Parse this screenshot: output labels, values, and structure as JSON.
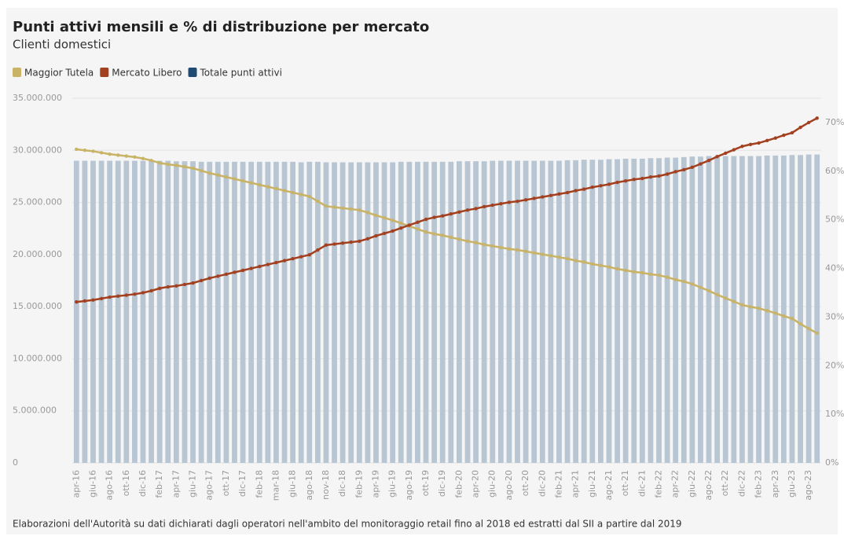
{
  "chart_data": {
    "type": "bar_line",
    "title": "Punti attivi mensili e % di distribuzione per mercato",
    "subtitle": "Clienti domestici",
    "source": "Elaborazioni dell'Autorità su dati dichiarati dagli operatori nell'ambito del monitoraggio retail fino al 2018 ed estratti dal SII a partire dal 2019",
    "categories": [
      "apr-16",
      null,
      "giu-16",
      null,
      "ago-16",
      null,
      "ott-16",
      null,
      "dic-16",
      null,
      "feb-17",
      null,
      "apr-17",
      null,
      "giu-17",
      null,
      "ago-17",
      null,
      "ott-17",
      null,
      "dic-17",
      null,
      "feb-18",
      null,
      "mar-18",
      null,
      "giu-18",
      null,
      "ago-18",
      null,
      "nov-18",
      null,
      "dic-18",
      null,
      "feb-19",
      null,
      "apr-19",
      null,
      "giu-19",
      null,
      "ago-19",
      null,
      "ott-19",
      null,
      "dic-19",
      null,
      "feb-20",
      null,
      "apr-20",
      null,
      "giu-20",
      null,
      "ago-20",
      null,
      "ott-20",
      null,
      "dic-20",
      null,
      "feb-21",
      null,
      "apr-21",
      null,
      "giu-21",
      null,
      "ago-21",
      null,
      "ott-21",
      null,
      "dic-21",
      null,
      "feb-22",
      null,
      "apr-22",
      null,
      "giu-22",
      null,
      "ago-22",
      null,
      "ott-22",
      null,
      "dic-22",
      null,
      "feb-23",
      null,
      "apr-23",
      null,
      "giu-23",
      null,
      "ago-23",
      null
    ],
    "series": [
      {
        "name": "Maggior Tutela",
        "color": "#c8b366",
        "axis": "y2",
        "kind": "line",
        "values": [
          64.5,
          64.3,
          64.1,
          63.8,
          63.5,
          63.3,
          63.1,
          62.9,
          62.6,
          62.2,
          61.7,
          61.4,
          61.2,
          60.9,
          60.6,
          60.1,
          59.6,
          59.2,
          58.8,
          58.4,
          58.0,
          57.6,
          57.2,
          56.8,
          56.4,
          56.0,
          55.6,
          55.2,
          54.8,
          53.8,
          52.8,
          52.6,
          52.4,
          52.2,
          52.0,
          51.5,
          50.9,
          50.4,
          49.9,
          49.3,
          48.7,
          48.1,
          47.5,
          47.1,
          46.8,
          46.4,
          46.0,
          45.6,
          45.3,
          44.9,
          44.6,
          44.3,
          44.0,
          43.8,
          43.5,
          43.2,
          42.9,
          42.6,
          42.3,
          42.0,
          41.6,
          41.3,
          40.9,
          40.6,
          40.3,
          39.9,
          39.6,
          39.3,
          39.1,
          38.8,
          38.6,
          38.2,
          37.7,
          37.3,
          36.8,
          36.1,
          35.4,
          34.6,
          33.9,
          33.2,
          32.5,
          32.1,
          31.8,
          31.3,
          30.8,
          30.2,
          29.7,
          28.6,
          27.6,
          26.7
        ]
      },
      {
        "name": "Mercato Libero",
        "color": "#a3401f",
        "axis": "y2",
        "kind": "line",
        "values": [
          33.1,
          33.3,
          33.5,
          33.8,
          34.1,
          34.3,
          34.5,
          34.7,
          35.0,
          35.4,
          35.9,
          36.2,
          36.4,
          36.7,
          37.0,
          37.5,
          38.0,
          38.4,
          38.8,
          39.2,
          39.6,
          40.0,
          40.4,
          40.8,
          41.2,
          41.6,
          42.0,
          42.4,
          42.8,
          43.8,
          44.8,
          45.0,
          45.2,
          45.4,
          45.6,
          46.1,
          46.7,
          47.2,
          47.7,
          48.3,
          48.9,
          49.5,
          50.1,
          50.5,
          50.8,
          51.2,
          51.6,
          52.0,
          52.3,
          52.7,
          53.0,
          53.3,
          53.6,
          53.8,
          54.1,
          54.4,
          54.7,
          55.0,
          55.3,
          55.6,
          56.0,
          56.3,
          56.7,
          57.0,
          57.3,
          57.7,
          58.0,
          58.3,
          58.5,
          58.8,
          59.0,
          59.4,
          59.9,
          60.3,
          60.8,
          61.5,
          62.2,
          63.0,
          63.7,
          64.4,
          65.1,
          65.5,
          65.8,
          66.3,
          66.8,
          67.4,
          67.9,
          69.0,
          70.0,
          70.9
        ]
      },
      {
        "name": "Totale punti attivi",
        "color": "#b8c5d3",
        "legend_color": "#1f4a72",
        "kind": "bar",
        "values": [
          29000000,
          29000000,
          29000000,
          29000000,
          29000000,
          29000000,
          29000000,
          29000000,
          29000000,
          29000000,
          29000000,
          29000000,
          28950000,
          28950000,
          28950000,
          28900000,
          28900000,
          28900000,
          28900000,
          28900000,
          28900000,
          28900000,
          28900000,
          28900000,
          28900000,
          28900000,
          28900000,
          28850000,
          28900000,
          28900000,
          28850000,
          28850000,
          28850000,
          28850000,
          28850000,
          28850000,
          28850000,
          28850000,
          28850000,
          28900000,
          28900000,
          28900000,
          28900000,
          28900000,
          28900000,
          28900000,
          28950000,
          28950000,
          28950000,
          28950000,
          29000000,
          29000000,
          29000000,
          29000000,
          29000000,
          29000000,
          29000000,
          29000000,
          29000000,
          29050000,
          29050000,
          29100000,
          29100000,
          29100000,
          29150000,
          29150000,
          29200000,
          29200000,
          29200000,
          29250000,
          29250000,
          29300000,
          29300000,
          29350000,
          29400000,
          29400000,
          29450000,
          29450000,
          29450000,
          29450000,
          29450000,
          29450000,
          29450000,
          29500000,
          29500000,
          29500000,
          29550000,
          29550000,
          29600000,
          29600000
        ]
      }
    ],
    "ylim": [
      0,
      35000000
    ],
    "yticks": [
      0,
      {
        "value": 5000000,
        "label": "5.000.000"
      },
      {
        "value": 10000000,
        "label": "10.000.000"
      },
      {
        "value": 15000000,
        "label": "15.000.000"
      },
      {
        "value": 20000000,
        "label": "20.000.000"
      },
      {
        "value": 25000000,
        "label": "25.000.000"
      },
      {
        "value": 30000000,
        "label": "30.000.000"
      },
      {
        "value": 35000000,
        "label": "35.000.000"
      }
    ],
    "y2lim": [
      0,
      75
    ],
    "y2ticks": [
      {
        "value": 0,
        "label": "0%"
      },
      {
        "value": 10,
        "label": "10%"
      },
      {
        "value": 20,
        "label": "20%"
      },
      {
        "value": 30,
        "label": "30%"
      },
      {
        "value": 40,
        "label": "40%"
      },
      {
        "value": 50,
        "label": "50%"
      },
      {
        "value": 60,
        "label": "60%"
      },
      {
        "value": 70,
        "label": "70%"
      }
    ],
    "grid": true
  }
}
